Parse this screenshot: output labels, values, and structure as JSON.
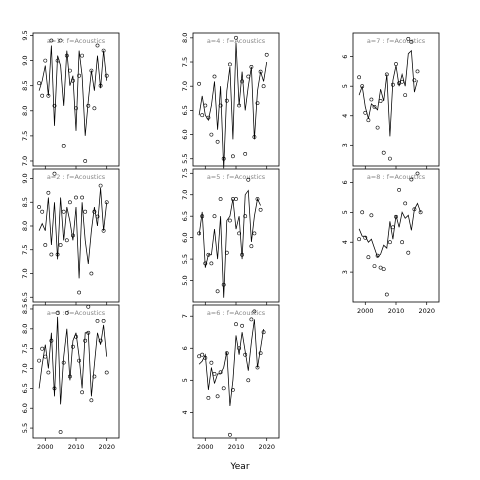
{
  "chart_data": {
    "type": "scatter",
    "xlabel": "Year",
    "ylabel": "",
    "grid": false,
    "legend": "none",
    "x_ticks": [
      "2000",
      "2010",
      "2020"
    ],
    "xlim": [
      1996,
      2024
    ],
    "panels": [
      {
        "label": "a=1 : f=Acoustics",
        "ylim": [
          6.9,
          9.55
        ],
        "y_ticks": [
          "7.0",
          "7.5",
          "8.0",
          "8.5",
          "9.0",
          "9.5"
        ],
        "x": [
          1998,
          1999,
          2000,
          2001,
          2002,
          2003,
          2004,
          2005,
          2006,
          2007,
          2008,
          2009,
          2010,
          2011,
          2012,
          2013,
          2014,
          2015,
          2016,
          2017,
          2018,
          2019,
          2020,
          2021
        ],
        "points": [
          8.55,
          8.3,
          9.0,
          8.3,
          9.4,
          8.1,
          9.0,
          9.4,
          7.3,
          9.1,
          8.8,
          8.6,
          8.05,
          8.7,
          9.1,
          7.0,
          8.1,
          8.8,
          8.05,
          9.3,
          8.5,
          9.2,
          8.7,
          null
        ],
        "fitted": [
          8.4,
          8.6,
          8.9,
          8.3,
          9.3,
          7.7,
          9.1,
          8.9,
          8.1,
          9.2,
          8.5,
          8.7,
          7.6,
          9.2,
          8.7,
          7.5,
          8.2,
          8.8,
          8.4,
          9.1,
          8.45,
          9.2,
          8.6,
          null
        ]
      },
      {
        "label": "a=2 : f=Acoustics",
        "ylim": [
          6.4,
          9.2
        ],
        "y_ticks": [
          "6.5",
          "7.0",
          "7.5",
          "8.0",
          "8.5",
          "9.0"
        ],
        "x": [
          1998,
          1999,
          2000,
          2001,
          2002,
          2003,
          2004,
          2005,
          2006,
          2007,
          2008,
          2009,
          2010,
          2011,
          2012,
          2013,
          2014,
          2015,
          2016,
          2017,
          2018,
          2019,
          2020,
          2021
        ],
        "points": [
          8.4,
          8.3,
          7.6,
          8.7,
          7.4,
          9.1,
          7.4,
          7.6,
          8.3,
          7.7,
          8.5,
          7.8,
          8.6,
          6.6,
          8.6,
          8.3,
          6.3,
          7.0,
          8.3,
          8.2,
          8.85,
          7.9,
          8.5,
          null
        ],
        "fitted": [
          7.9,
          8.05,
          7.9,
          8.6,
          7.6,
          8.5,
          7.3,
          8.6,
          7.7,
          8.4,
          8.1,
          7.7,
          8.4,
          6.9,
          8.5,
          7.7,
          7.2,
          7.9,
          8.4,
          8.0,
          8.8,
          7.9,
          8.5,
          null
        ]
      },
      {
        "label": "a=3 : f=Acoustics",
        "ylim": [
          5.25,
          8.6
        ],
        "y_ticks": [
          "5.5",
          "6.0",
          "6.5",
          "7.0",
          "7.5",
          "8.0",
          "8.5"
        ],
        "x": [
          1998,
          1999,
          2000,
          2001,
          2002,
          2003,
          2004,
          2005,
          2006,
          2007,
          2008,
          2009,
          2010,
          2011,
          2012,
          2013,
          2014,
          2015,
          2016,
          2017,
          2018,
          2019,
          2020,
          2021
        ],
        "points": [
          7.2,
          7.5,
          7.3,
          6.9,
          7.7,
          6.5,
          8.4,
          5.4,
          7.15,
          8.4,
          6.8,
          7.55,
          7.8,
          7.2,
          6.4,
          7.7,
          7.9,
          6.2,
          6.8,
          8.2,
          7.7,
          8.2,
          6.9,
          null
        ],
        "fitted": [
          6.5,
          7.1,
          7.6,
          7.0,
          7.9,
          6.3,
          8.3,
          6.1,
          7.3,
          8.0,
          6.7,
          7.7,
          7.9,
          7.3,
          6.5,
          7.9,
          7.9,
          6.3,
          7.1,
          7.9,
          7.6,
          8.1,
          7.3,
          null
        ]
      },
      {
        "label": "a=4 : f=Acoustics",
        "ylim": [
          5.35,
          8.1
        ],
        "y_ticks": [
          "5.5",
          "6.0",
          "6.5",
          "7.0",
          "7.5",
          "8.0"
        ],
        "x": [
          1998,
          1999,
          2000,
          2001,
          2002,
          2003,
          2004,
          2005,
          2006,
          2007,
          2008,
          2009,
          2010,
          2011,
          2012,
          2013,
          2014,
          2015,
          2016,
          2017,
          2018,
          2019,
          2020,
          2021
        ],
        "points": [
          7.05,
          6.4,
          6.6,
          6.35,
          6.0,
          7.2,
          5.85,
          6.6,
          5.5,
          6.7,
          7.45,
          5.55,
          8.0,
          6.6,
          7.1,
          5.6,
          7.2,
          7.4,
          5.95,
          6.65,
          7.3,
          7.0,
          7.65,
          null
        ],
        "fitted": [
          6.4,
          6.8,
          6.4,
          6.3,
          6.6,
          7.1,
          6.1,
          7.0,
          5.3,
          6.9,
          7.4,
          5.9,
          7.9,
          6.6,
          7.3,
          6.5,
          7.0,
          7.4,
          5.9,
          6.9,
          7.3,
          7.1,
          7.5,
          null
        ]
      },
      {
        "label": "a=5 : f=Acoustics",
        "ylim": [
          4.5,
          7.6
        ],
        "y_ticks": [
          "5.0",
          "5.5",
          "6.0",
          "6.5",
          "7.0",
          "7.5"
        ],
        "x": [
          1998,
          1999,
          2000,
          2001,
          2002,
          2003,
          2004,
          2005,
          2006,
          2007,
          2008,
          2009,
          2010,
          2011,
          2012,
          2013,
          2014,
          2015,
          2016,
          2017,
          2018,
          2019,
          2020,
          2021
        ],
        "points": [
          6.1,
          6.5,
          5.4,
          5.6,
          5.4,
          6.5,
          4.75,
          6.9,
          4.9,
          5.65,
          6.4,
          6.9,
          6.9,
          6.1,
          5.6,
          6.5,
          7.35,
          5.8,
          6.1,
          6.9,
          6.65,
          null,
          null,
          null
        ],
        "fitted": [
          6.05,
          6.6,
          5.3,
          5.6,
          5.6,
          6.2,
          5.5,
          6.5,
          4.6,
          6.4,
          6.5,
          6.9,
          6.2,
          6.5,
          5.5,
          7.0,
          7.1,
          5.9,
          6.5,
          6.9,
          6.75,
          null,
          null,
          null
        ]
      },
      {
        "label": "a=6 : f=Acoustics",
        "ylim": [
          3.2,
          7.35
        ],
        "y_ticks": [
          "4",
          "5",
          "6",
          "7"
        ],
        "x": [
          1998,
          1999,
          2000,
          2001,
          2002,
          2003,
          2004,
          2005,
          2006,
          2007,
          2008,
          2009,
          2010,
          2011,
          2012,
          2013,
          2014,
          2015,
          2016,
          2017,
          2018,
          2019,
          2020,
          2021
        ],
        "points": [
          5.75,
          5.8,
          5.7,
          4.45,
          5.55,
          5.2,
          4.5,
          5.25,
          4.75,
          5.85,
          3.3,
          4.7,
          6.75,
          6.0,
          6.7,
          5.8,
          5.0,
          6.9,
          7.15,
          5.4,
          5.85,
          6.5,
          null,
          null
        ],
        "fitted": [
          5.5,
          5.6,
          5.8,
          4.7,
          5.4,
          4.9,
          5.2,
          5.2,
          5.4,
          5.9,
          4.2,
          5.0,
          6.4,
          5.8,
          6.5,
          5.9,
          5.3,
          6.2,
          6.9,
          5.4,
          6.0,
          6.6,
          null,
          null
        ]
      },
      {
        "label": "a=7 : f=Acoustics",
        "ylim": [
          2.3,
          6.8
        ],
        "y_ticks": [
          "3",
          "4",
          "5",
          "6"
        ],
        "x": [
          1998,
          1999,
          2000,
          2001,
          2002,
          2003,
          2004,
          2005,
          2006,
          2007,
          2008,
          2009,
          2010,
          2011,
          2012,
          2013,
          2014,
          2015,
          2016,
          2017,
          2018,
          2019,
          2020,
          2021
        ],
        "points": [
          5.3,
          5.0,
          4.1,
          3.85,
          4.55,
          4.3,
          3.6,
          4.5,
          2.75,
          5.4,
          2.55,
          5.05,
          5.75,
          5.1,
          5.15,
          4.7,
          6.6,
          6.5,
          5.2,
          5.5,
          null,
          null,
          null,
          null
        ],
        "fitted": [
          4.7,
          5.0,
          4.3,
          3.9,
          4.4,
          4.3,
          4.2,
          4.9,
          4.5,
          5.4,
          3.3,
          5.2,
          5.7,
          5.0,
          5.4,
          5.0,
          6.1,
          6.2,
          4.8,
          5.2,
          null,
          null,
          null,
          null
        ]
      },
      {
        "label": "a=8 : f=Acoustics",
        "ylim": [
          2.0,
          6.45
        ],
        "y_ticks": [
          "3",
          "4",
          "5",
          "6"
        ],
        "x": [
          1998,
          1999,
          2000,
          2001,
          2002,
          2003,
          2004,
          2005,
          2006,
          2007,
          2008,
          2009,
          2010,
          2011,
          2012,
          2013,
          2014,
          2015,
          2016,
          2017,
          2018,
          2019,
          2020,
          2021
        ],
        "points": [
          4.1,
          5.0,
          4.15,
          3.5,
          4.9,
          3.2,
          3.55,
          3.15,
          3.1,
          2.25,
          4.0,
          4.5,
          4.85,
          5.75,
          4.0,
          5.3,
          3.65,
          6.1,
          5.1,
          6.3,
          5.0,
          null,
          null,
          null
        ],
        "fitted": [
          4.45,
          4.2,
          4.2,
          4.0,
          4.1,
          3.8,
          3.5,
          3.6,
          3.9,
          3.8,
          4.7,
          4.1,
          4.9,
          4.5,
          5.0,
          4.8,
          4.9,
          4.4,
          5.1,
          5.3,
          5.0,
          null,
          null,
          null
        ]
      }
    ]
  }
}
